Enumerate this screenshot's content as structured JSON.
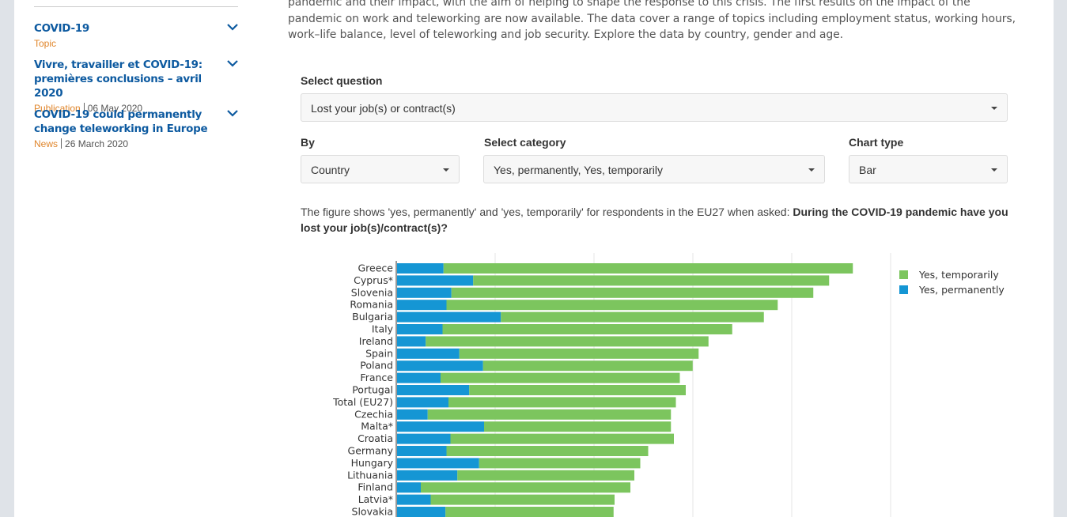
{
  "sidebar": {
    "items": [
      {
        "title": "COVID-19",
        "type": "Topic",
        "date": ""
      },
      {
        "title": "Vivre, travailler et COVID-19: premières conclusions – avril 2020",
        "type": "Publication",
        "date": "06 May 2020"
      },
      {
        "title": "COVID-19 could permanently change teleworking in Europe",
        "type": "News",
        "date": "26 March 2020"
      }
    ]
  },
  "intro": "pandemic and their impact, with the aim of helping to shape the response to this crisis. The first results on the impact of the pandemic on work and teleworking are now available. The data cover a range of topics including employment status, working hours, work–life balance, level of teleworking and job security. Explore the data by country, gender and age.",
  "form": {
    "question_label": "Select question",
    "question_value": "Lost your job(s) or contract(s)",
    "by_label": "By",
    "by_value": "Country",
    "category_label": "Select category",
    "category_value": "Yes, permanently, Yes, temporarily",
    "charttype_label": "Chart type",
    "charttype_value": "Bar"
  },
  "caption": {
    "text": "The figure shows 'yes, permanently' and 'yes, temporarily' for respondents in the EU27 when asked: ",
    "question": "During the COVID-19 pandemic have you lost your job(s)/contract(s)?"
  },
  "colors": {
    "permanent": "#1596d4",
    "temporary": "#7cc55e",
    "link": "#0d5aa0",
    "meta": "#e0852a"
  },
  "chart_data": {
    "type": "bar",
    "orientation": "horizontal",
    "stacked": true,
    "categories": [
      "Greece",
      "Cyprus*",
      "Slovenia",
      "Romania",
      "Bulgaria",
      "Italy",
      "Ireland",
      "Spain",
      "Poland",
      "France",
      "Portugal",
      "Total (EU27)",
      "Czechia",
      "Malta*",
      "Croatia",
      "Germany",
      "Hungary",
      "Lithuania",
      "Finland",
      "Latvia*",
      "Slovakia"
    ],
    "series": [
      {
        "name": "Yes, permanently",
        "values": [
          4.7,
          7.7,
          5.5,
          5.0,
          10.5,
          4.6,
          2.9,
          6.3,
          8.7,
          4.4,
          7.3,
          5.2,
          3.1,
          8.8,
          5.4,
          5.0,
          8.3,
          6.1,
          2.4,
          3.4,
          4.9
        ]
      },
      {
        "name": "Yes, temporarily",
        "values": [
          41.4,
          36.0,
          36.6,
          33.5,
          26.6,
          29.3,
          28.6,
          24.2,
          21.2,
          24.2,
          21.9,
          23.0,
          24.6,
          18.9,
          22.6,
          20.4,
          16.3,
          17.9,
          21.2,
          18.6,
          17.0
        ]
      }
    ],
    "xlim": [
      0,
      50
    ],
    "grid": true,
    "legend_position": "top-right"
  }
}
